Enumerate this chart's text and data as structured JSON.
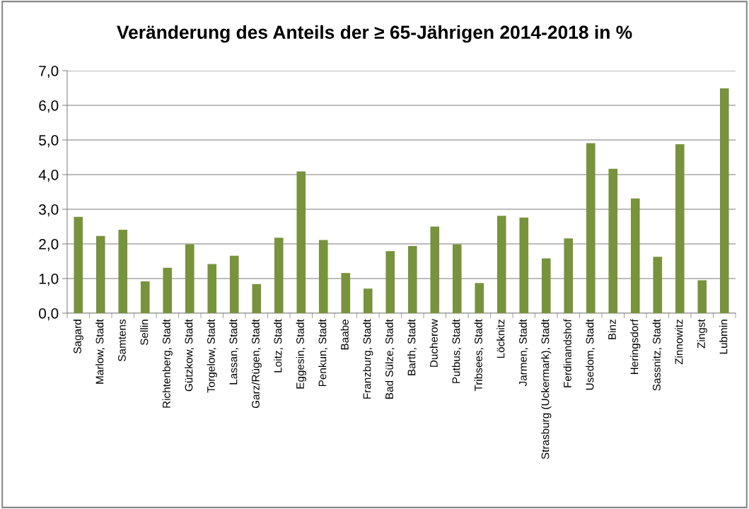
{
  "chart_data": {
    "type": "bar",
    "title": "Veränderung des Anteils der ≥ 65-Jährigen 2014-2018 in %",
    "categories": [
      "Sagard",
      "Marlow, Stadt",
      "Samtens",
      "Sellin",
      "Richtenberg, Stadt",
      "Gützkow, Stadt",
      "Torgelow, Stadt",
      "Lassan, Stadt",
      "Garz/Rügen, Stadt",
      "Loitz, Stadt",
      "Eggesin, Stadt",
      "Penkun, Stadt",
      "Baabe",
      "Franzburg, Stadt",
      "Bad Sülze, Stadt",
      "Barth, Stadt",
      "Ducherow",
      "Putbus, Stadt",
      "Tribsees, Stadt",
      "Löcknitz",
      "Jarmen, Stadt",
      "Strasburg (Uckermark), Stadt",
      "Ferdinandshof",
      "Usedom, Stadt",
      "Binz",
      "Heringsdorf",
      "Sassnitz, Stadt",
      "Zinnowitz",
      "Zingst",
      "Lubmin"
    ],
    "values": [
      2.78,
      2.23,
      2.41,
      0.92,
      1.31,
      1.99,
      1.42,
      1.66,
      0.84,
      2.18,
      4.09,
      2.11,
      1.16,
      0.71,
      1.79,
      1.94,
      2.5,
      1.99,
      0.87,
      2.81,
      2.76,
      1.58,
      2.16,
      4.91,
      4.17,
      3.31,
      1.63,
      4.88,
      0.95,
      6.49
    ],
    "color": "#77933c",
    "ylim": [
      0,
      7
    ],
    "yticks": [
      {
        "value": 0,
        "label": "0,0"
      },
      {
        "value": 1,
        "label": "1,0"
      },
      {
        "value": 2,
        "label": "2,0"
      },
      {
        "value": 3,
        "label": "3,0"
      },
      {
        "value": 4,
        "label": "4,0"
      },
      {
        "value": 5,
        "label": "5,0"
      },
      {
        "value": 6,
        "label": "6,0"
      },
      {
        "value": 7,
        "label": "7,0"
      }
    ],
    "grid": "y"
  }
}
